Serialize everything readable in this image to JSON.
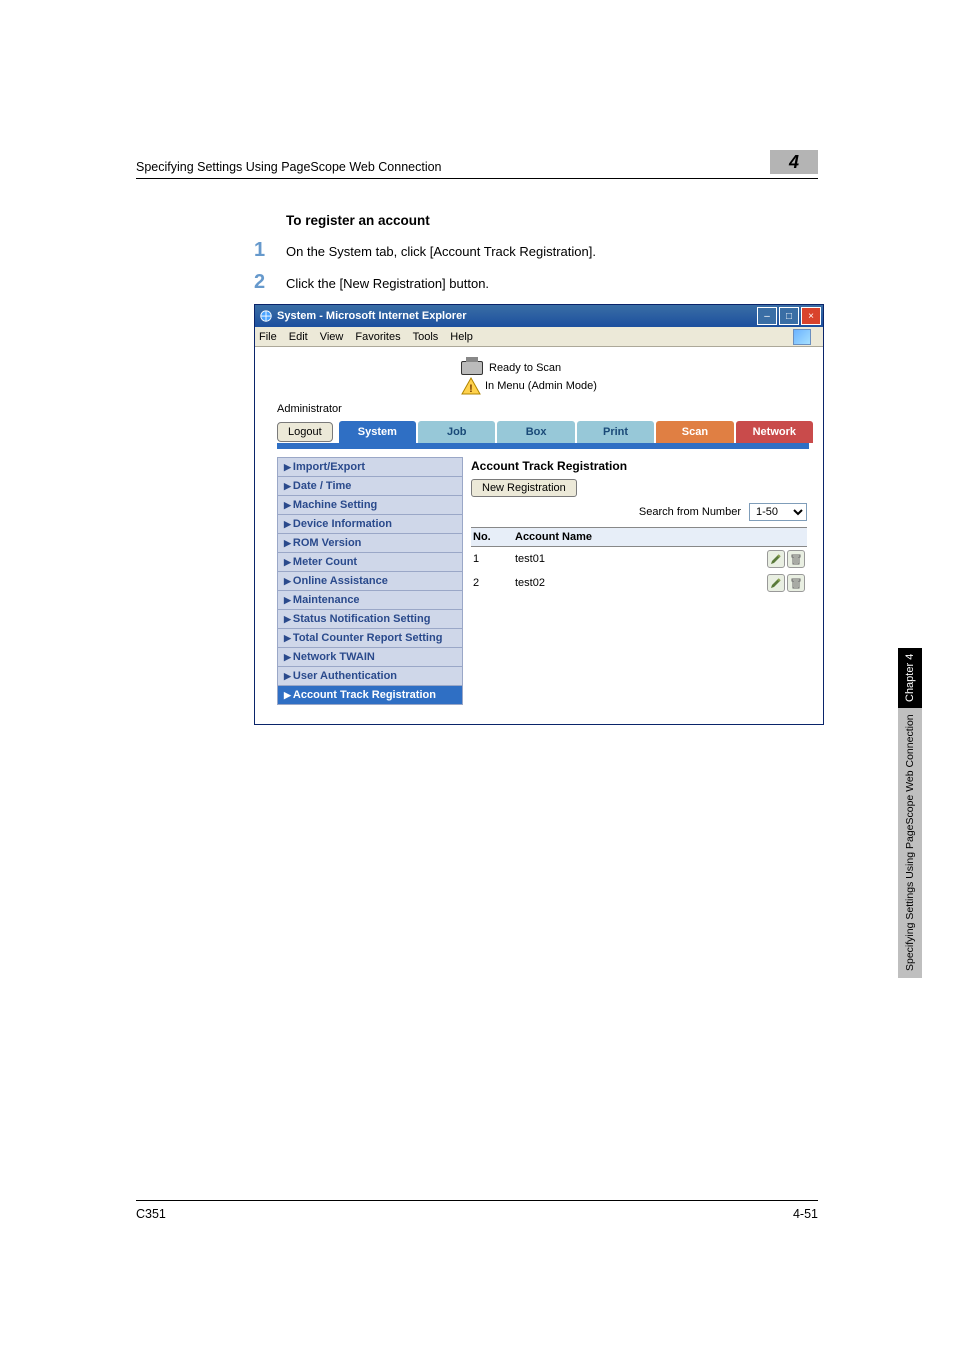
{
  "page": {
    "header_text": "Specifying Settings Using PageScope Web Connection",
    "chapter_number": "4",
    "section_title": "To register an account",
    "steps": [
      {
        "num": "1",
        "text": "On the System tab, click [Account Track Registration]."
      },
      {
        "num": "2",
        "text": "Click the [New Registration] button."
      }
    ],
    "footer_left": "C351",
    "footer_right": "4-51"
  },
  "sidetab": {
    "chapter": "Chapter 4",
    "label": "Specifying Settings Using PageScope Web Connection"
  },
  "browser": {
    "title": "System - Microsoft Internet Explorer",
    "menubar": [
      "File",
      "Edit",
      "View",
      "Favorites",
      "Tools",
      "Help"
    ],
    "status1": "Ready to Scan",
    "status2": "In Menu (Admin Mode)",
    "admin_label": "Administrator",
    "logout": "Logout",
    "tabs": {
      "system": "System",
      "job": "Job",
      "box": "Box",
      "print": "Print",
      "scan": "Scan",
      "network": "Network"
    },
    "sidebar": [
      "Import/Export",
      "Date / Time",
      "Machine Setting",
      "Device Information",
      "ROM Version",
      "Meter Count",
      "Online Assistance",
      "Maintenance",
      "Status Notification Setting",
      "Total Counter Report Setting",
      "Network TWAIN",
      "User Authentication",
      "Account Track Registration"
    ],
    "sidebar_active_index": 12,
    "pane": {
      "title": "Account Track Registration",
      "new_reg": "New Registration",
      "search_label": "Search from Number",
      "search_value": "1-50",
      "columns": {
        "no": "No.",
        "name": "Account Name"
      },
      "rows": [
        {
          "no": "1",
          "name": "test01"
        },
        {
          "no": "2",
          "name": "test02"
        }
      ]
    },
    "colors": {
      "titlebar": "#2a5fa8",
      "tab_active": "#2f6fc4",
      "tab_inactive": "#97c8d8",
      "tab_scan": "#e07f43",
      "tab_network": "#c94b4b",
      "sidebar_bg": "#cfd7e9",
      "sidebar_link": "#2a4a8c",
      "chnum_bg": "#b4b4b4",
      "stepnum": "#6699cc"
    }
  }
}
